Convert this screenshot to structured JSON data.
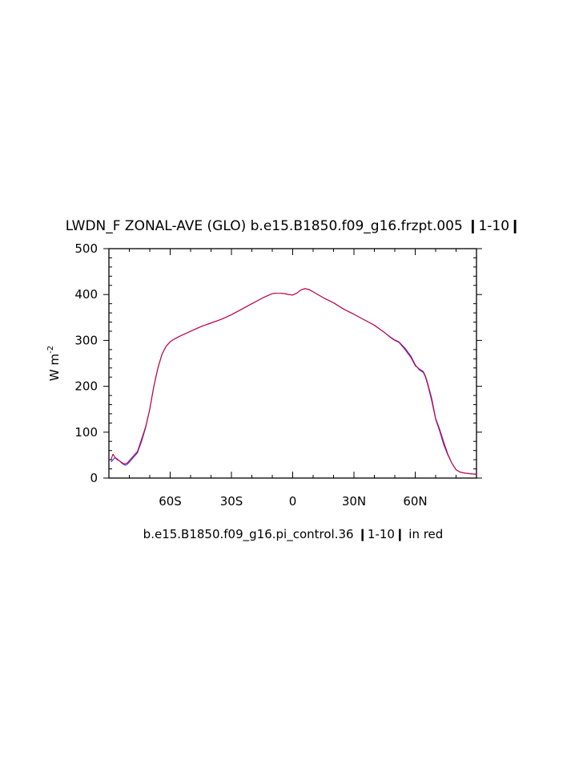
{
  "chart_data": {
    "type": "line",
    "title": "LWDN_F ZONAL-AVE (GLO) b.e15.B1850.f09_g16.frzpt.005 ❙1-10❙",
    "subtitle": "b.e15.B1850.f09_g16.pi_control.36 ❙1-10❙ in red",
    "ylabel": "W m",
    "ylabel_sup": "-2",
    "xlim": [
      -90,
      90
    ],
    "ylim": [
      0,
      500
    ],
    "xticks": [
      {
        "value": -60,
        "label": "60S"
      },
      {
        "value": -30,
        "label": "30S"
      },
      {
        "value": 0,
        "label": "0"
      },
      {
        "value": 30,
        "label": "30N"
      },
      {
        "value": 60,
        "label": "60N"
      }
    ],
    "yticks": [
      {
        "value": 0,
        "label": "0"
      },
      {
        "value": 100,
        "label": "100"
      },
      {
        "value": 200,
        "label": "200"
      },
      {
        "value": 300,
        "label": "300"
      },
      {
        "value": 400,
        "label": "400"
      },
      {
        "value": 500,
        "label": "500"
      }
    ],
    "grid": false,
    "series": [
      {
        "color": "#3333ff",
        "x": [
          -89,
          -88,
          -87,
          -86,
          -85,
          -84,
          -83,
          -82,
          -81,
          -80,
          -78,
          -76,
          -74,
          -72,
          -70,
          -68,
          -66,
          -64,
          -62,
          -60,
          -58,
          -55,
          -50,
          -45,
          -40,
          -35,
          -30,
          -25,
          -20,
          -15,
          -12,
          -10,
          -8,
          -6,
          -4,
          -2,
          0,
          2,
          4,
          6,
          8,
          10,
          15,
          20,
          25,
          30,
          35,
          40,
          45,
          48,
          50,
          52,
          55,
          58,
          60,
          62,
          64,
          65,
          66,
          68,
          70,
          72,
          74,
          76,
          78,
          80,
          82,
          84,
          86,
          88,
          90
        ],
        "y": [
          35,
          40,
          45,
          42,
          38,
          34,
          30,
          28,
          30,
          35,
          45,
          55,
          80,
          110,
          150,
          200,
          240,
          270,
          287,
          297,
          303,
          310,
          320,
          330,
          338,
          346,
          356,
          368,
          380,
          392,
          398,
          402,
          403,
          403,
          402,
          400,
          399,
          403,
          410,
          413,
          411,
          406,
          393,
          382,
          368,
          357,
          345,
          333,
          317,
          307,
          301,
          297,
          283,
          265,
          247,
          236,
          230,
          220,
          205,
          170,
          128,
          102,
          72,
          50,
          32,
          18,
          13,
          11,
          10,
          9,
          9
        ]
      },
      {
        "color": "#cc0033",
        "x": [
          -89,
          -88,
          -87,
          -86,
          -85,
          -84,
          -83,
          -82,
          -81,
          -80,
          -78,
          -76,
          -74,
          -72,
          -70,
          -68,
          -66,
          -64,
          -62,
          -60,
          -58,
          -55,
          -50,
          -45,
          -40,
          -35,
          -30,
          -25,
          -20,
          -15,
          -12,
          -10,
          -8,
          -6,
          -4,
          -2,
          0,
          2,
          4,
          6,
          8,
          10,
          15,
          20,
          25,
          30,
          35,
          40,
          45,
          48,
          50,
          52,
          55,
          58,
          60,
          62,
          64,
          65,
          66,
          68,
          70,
          72,
          74,
          76,
          78,
          80,
          82,
          84,
          86,
          88,
          90
        ],
        "y": [
          40,
          52,
          45,
          40,
          38,
          35,
          32,
          31,
          33,
          38,
          48,
          58,
          85,
          112,
          150,
          200,
          240,
          270,
          287,
          297,
          303,
          310,
          320,
          330,
          338,
          346,
          356,
          368,
          380,
          392,
          398,
          402,
          403,
          403,
          402,
          400,
          399,
          403,
          410,
          413,
          411,
          406,
          393,
          382,
          368,
          357,
          345,
          333,
          317,
          306,
          300,
          296,
          280,
          262,
          245,
          238,
          232,
          222,
          208,
          175,
          130,
          106,
          78,
          52,
          32,
          18,
          13,
          11,
          10,
          9,
          8
        ]
      }
    ]
  }
}
